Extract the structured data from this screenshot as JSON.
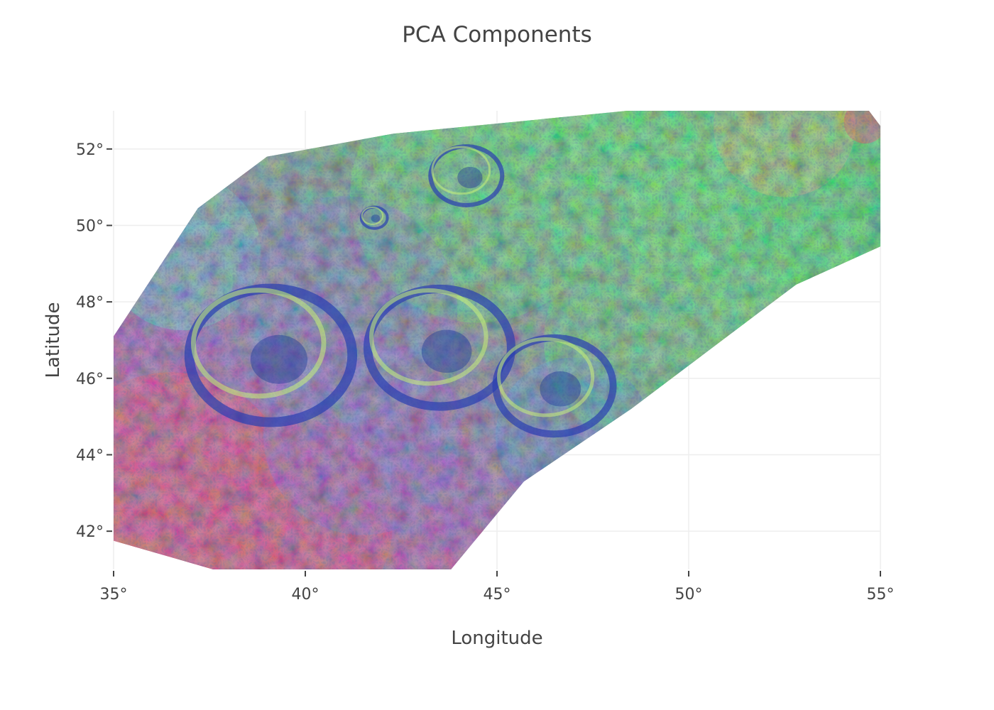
{
  "chart_data": {
    "type": "heatmap",
    "title": "PCA Components",
    "xlabel": "Longitude",
    "ylabel": "Latitude",
    "xlim": [
      35,
      55
    ],
    "ylim": [
      41,
      53
    ],
    "x_ticks": [
      35,
      40,
      45,
      50,
      55
    ],
    "x_tick_labels": [
      "35°",
      "40°",
      "45°",
      "50°",
      "55°"
    ],
    "y_ticks": [
      42,
      44,
      46,
      48,
      50,
      52
    ],
    "y_tick_labels": [
      "42°",
      "44°",
      "46°",
      "48°",
      "50°",
      "52°"
    ],
    "grid": true,
    "legend": "none",
    "image_footprint": [
      {
        "lon": 35.0,
        "lat": 41.75
      },
      {
        "lon": 35.0,
        "lat": 47.1
      },
      {
        "lon": 37.2,
        "lat": 50.45
      },
      {
        "lon": 39.0,
        "lat": 51.8
      },
      {
        "lon": 42.3,
        "lat": 52.4
      },
      {
        "lon": 48.4,
        "lat": 53.0
      },
      {
        "lon": 54.7,
        "lat": 53.0
      },
      {
        "lon": 55.0,
        "lat": 52.6
      },
      {
        "lon": 55.0,
        "lat": 49.45
      },
      {
        "lon": 52.8,
        "lat": 48.45
      },
      {
        "lon": 48.5,
        "lat": 45.2
      },
      {
        "lon": 45.7,
        "lat": 43.3
      },
      {
        "lon": 43.8,
        "lat": 41.0
      },
      {
        "lon": 37.6,
        "lat": 41.0
      }
    ],
    "craters": [
      {
        "lon": 39.1,
        "lat": 46.6,
        "radius_deg": 2.5
      },
      {
        "lon": 43.5,
        "lat": 46.8,
        "radius_deg": 2.2
      },
      {
        "lon": 46.5,
        "lat": 45.8,
        "radius_deg": 1.8
      },
      {
        "lon": 44.2,
        "lat": 51.3,
        "radius_deg": 1.1
      },
      {
        "lon": 41.8,
        "lat": 50.2,
        "radius_deg": 0.4
      }
    ],
    "colors": {
      "grid": "#eeeeee",
      "text": "#444444",
      "composite_red": "#e0305a",
      "composite_green": "#4fd84a",
      "composite_blue": "#2a3fb0"
    }
  }
}
